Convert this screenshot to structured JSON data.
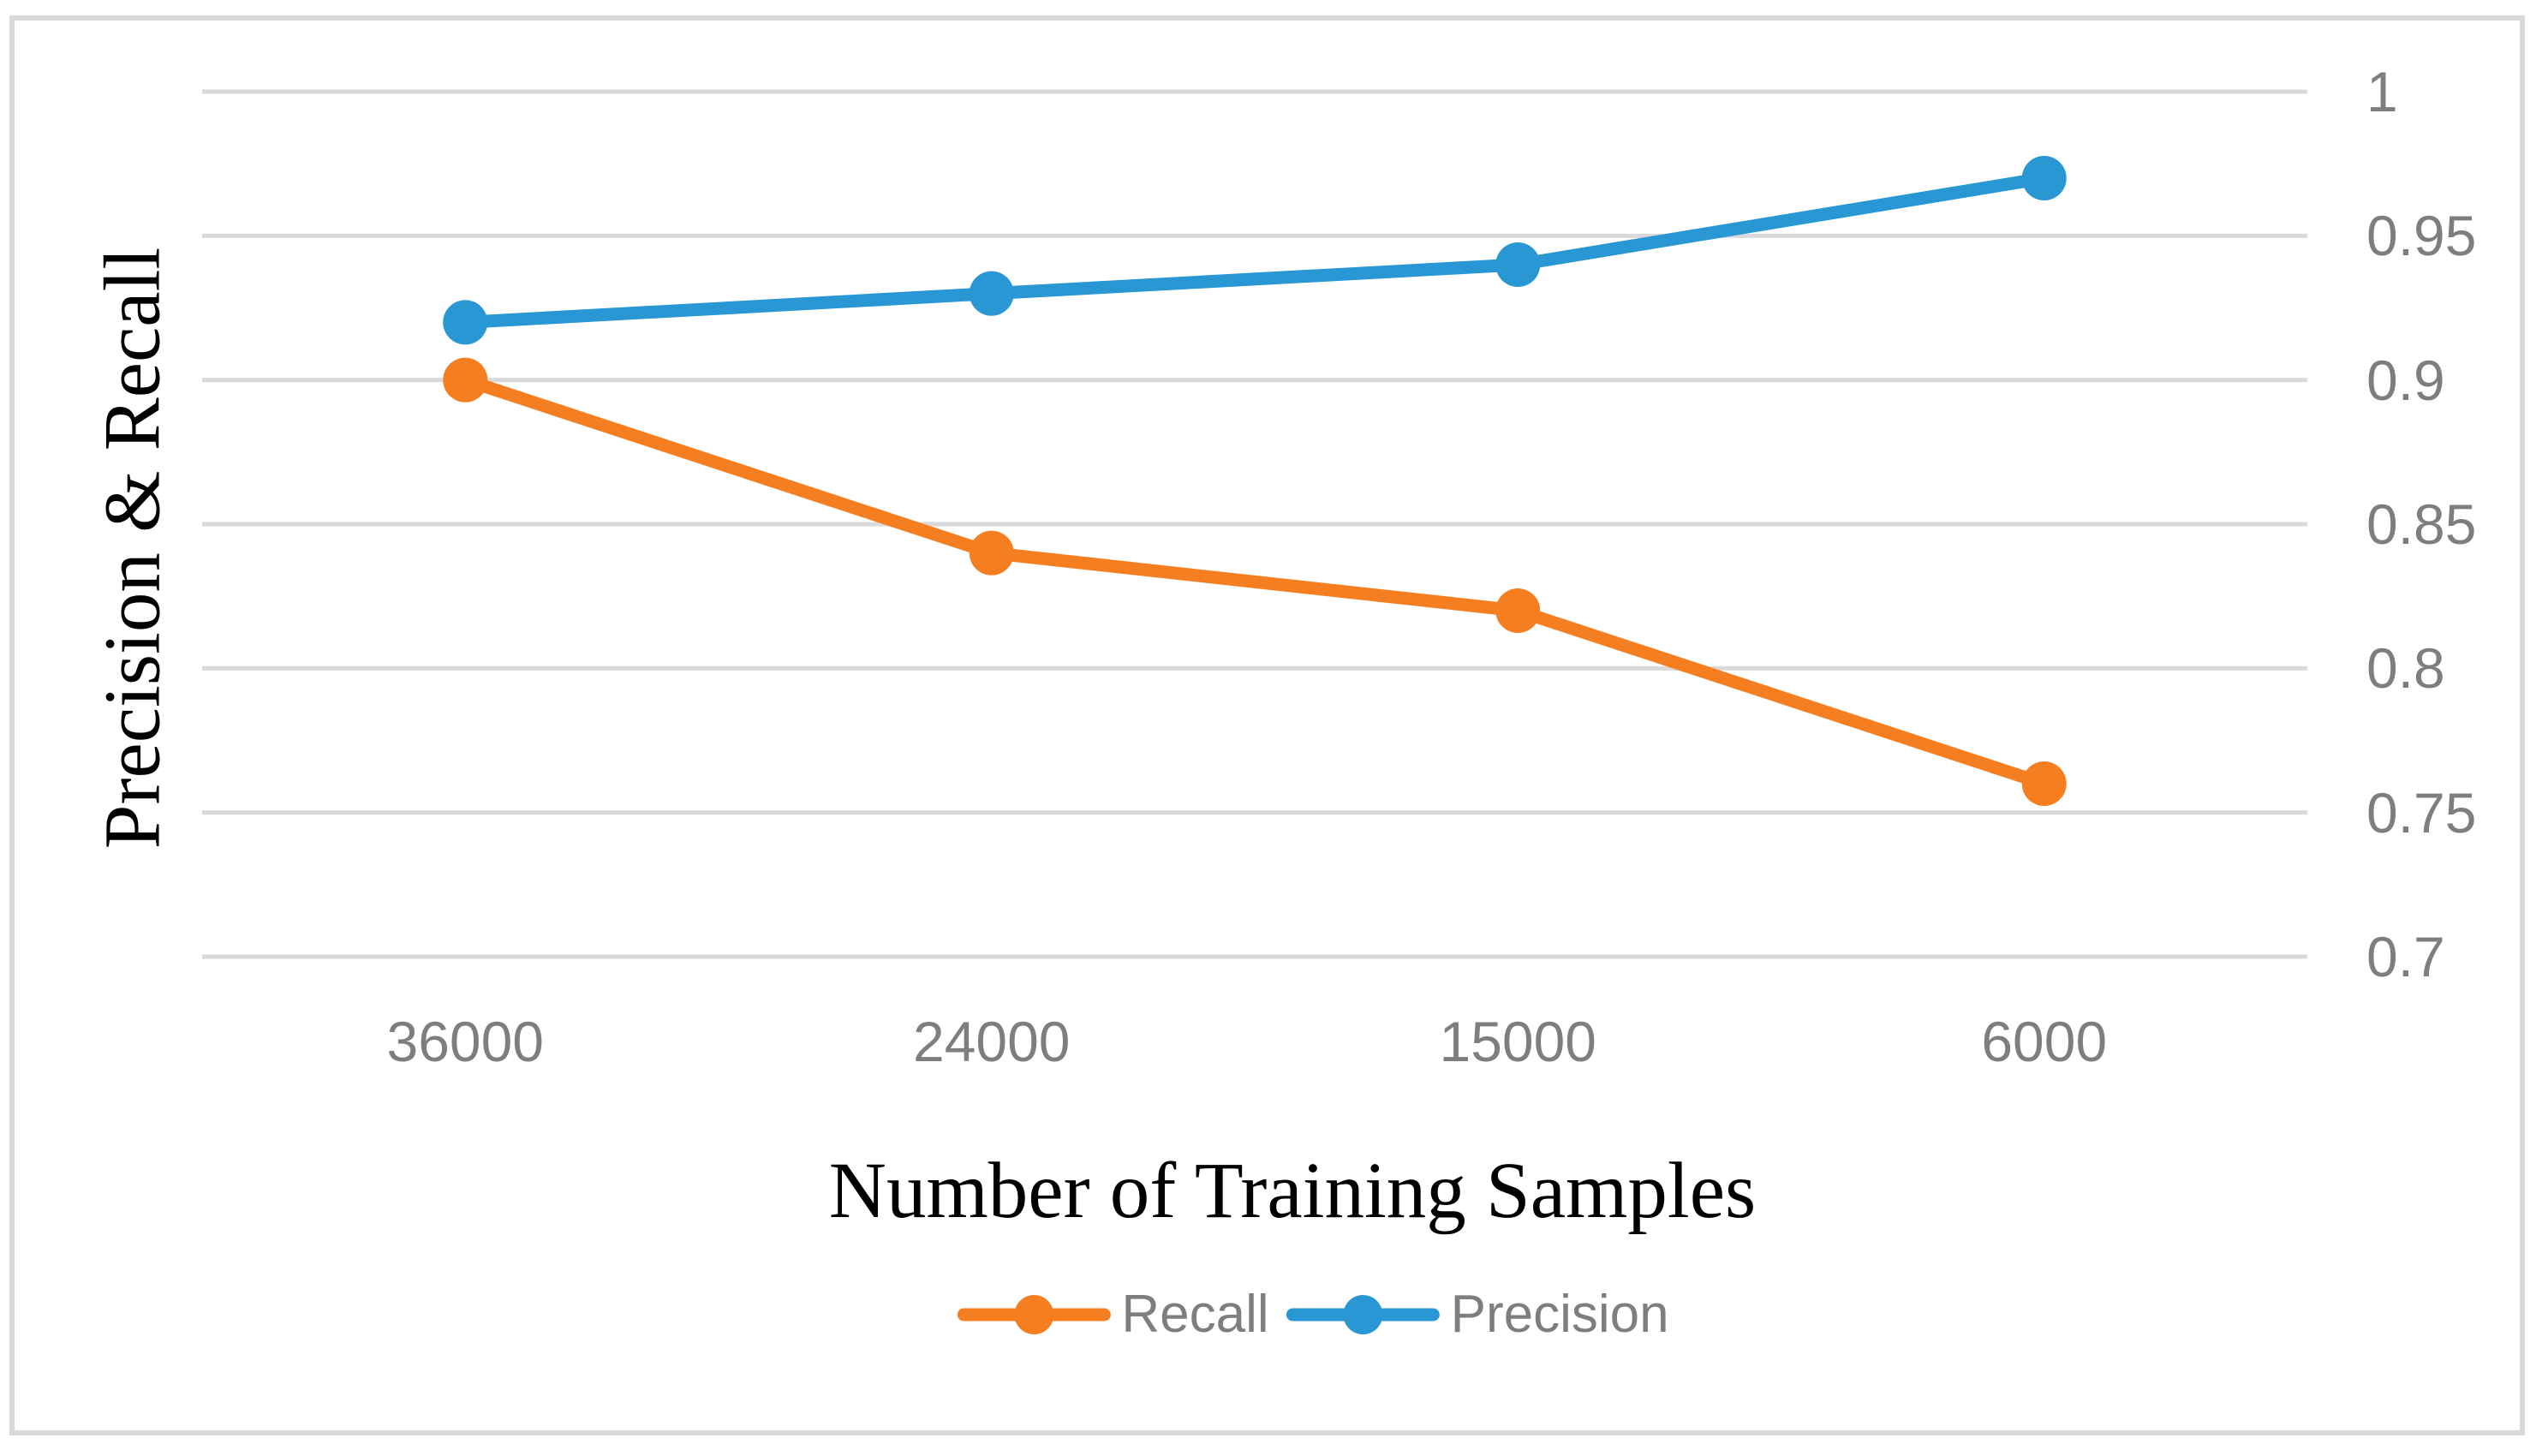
{
  "chart_data": {
    "type": "line",
    "categories": [
      "36000",
      "24000",
      "15000",
      "6000"
    ],
    "series": [
      {
        "name": "Recall",
        "color": "#F57E20",
        "values": [
          0.9,
          0.84,
          0.82,
          0.76
        ]
      },
      {
        "name": "Precision",
        "color": "#2897D3",
        "values": [
          0.92,
          0.93,
          0.94,
          0.97
        ]
      }
    ],
    "title": "",
    "xlabel": "Number of Training Samples",
    "ylabel": "Precision & Recall",
    "y_axis": {
      "min": 0.7,
      "max": 1.0,
      "step": 0.05,
      "side": "right",
      "tick_labels": [
        "1",
        "0.95",
        "0.9",
        "0.85",
        "0.8",
        "0.75",
        "0.7"
      ]
    },
    "grid": true,
    "legend_position": "bottom"
  },
  "colors": {
    "background": "#FFFFFF",
    "frame_border": "#D9D9D9",
    "gridline": "#D9D9D9",
    "tick_text": "#7E7E7E",
    "legend_text": "#7E7E7E",
    "title_text": "#000000"
  }
}
